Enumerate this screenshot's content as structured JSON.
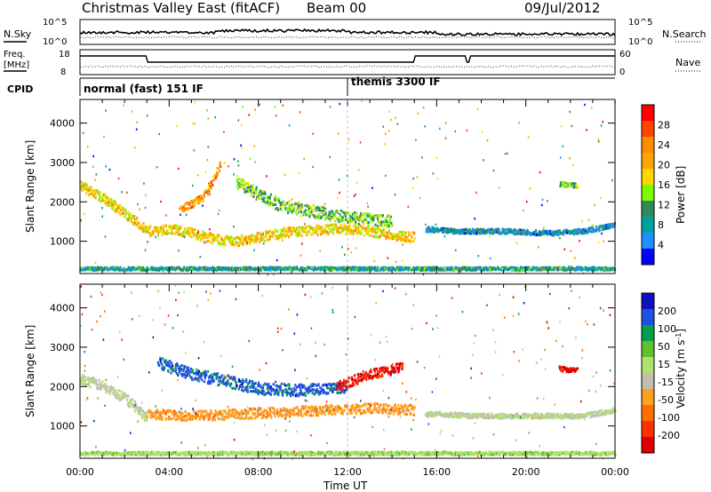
{
  "header": {
    "title": "Christmas Valley East (fitACF)",
    "beam": "Beam 00",
    "date": "09/Jul/2012"
  },
  "panels": {
    "nsky_label": "N.Sky",
    "nsearch_label": "N.Search",
    "freq_label_1": "Freq.",
    "freq_label_2": "[MHz]",
    "nave_label": "Nave",
    "cpid_label": "CPID",
    "nsky_ticks": [
      "10^5",
      "10^0"
    ],
    "nsearch_ticks": [
      "10^5",
      "10^0"
    ],
    "freq_ticks": [
      "18",
      "8"
    ],
    "nave_ticks": [
      "60",
      "0"
    ],
    "cpid_modes": [
      {
        "name": "normal (fast) 151 IF",
        "start": 0,
        "end": 12
      },
      {
        "name": "themis 3300 IF",
        "start": 12,
        "end": 24
      }
    ]
  },
  "power_colorbar": {
    "label": "Power [dB]",
    "ticks": [
      "28",
      "24",
      "20",
      "16",
      "12",
      "8",
      "4"
    ],
    "colors": [
      "#ff0000",
      "#ff4500",
      "#ff8c00",
      "#ffa500",
      "#ffd700",
      "#7cfc00",
      "#2e8b57",
      "#00a0a0",
      "#1e90ff",
      "#0000ff"
    ]
  },
  "velocity_colorbar": {
    "label": "Velocity [m s^-1]",
    "ticks": [
      "200",
      "100",
      "50",
      "15",
      "-15",
      "-50",
      "-100",
      "-200"
    ],
    "colors": [
      "#1010c0",
      "#2050e0",
      "#00a050",
      "#60c030",
      "#b0e070",
      "#c0c0b0",
      "#ffa020",
      "#ff7000",
      "#ff3000",
      "#e00000"
    ]
  },
  "axes": {
    "ylabel": "Slant Range [km]",
    "yticks": [
      "4000",
      "3000",
      "2000",
      "1000"
    ],
    "xlabel": "Time UT",
    "xticks": [
      "00:00",
      "04:00",
      "08:00",
      "12:00",
      "16:00",
      "20:00",
      "00:00"
    ]
  },
  "chart_data": [
    {
      "type": "heatmap",
      "title": "",
      "xlabel": "",
      "ylabel": "Slant Range [km]",
      "xlim": [
        0,
        24
      ],
      "ylim": [
        180,
        4600
      ],
      "value_label": "Power [dB]",
      "clim": [
        0,
        30
      ],
      "features": [
        {
          "name": "main band",
          "points": [
            [
              0.0,
              2400
            ],
            [
              1.0,
              2100
            ],
            [
              2.0,
              1700
            ],
            [
              3.0,
              1250
            ],
            [
              4.0,
              1300
            ],
            [
              5.0,
              1200
            ],
            [
              6.0,
              1050
            ],
            [
              7.0,
              1000
            ],
            [
              8.0,
              1100
            ],
            [
              9.0,
              1200
            ],
            [
              10.0,
              1250
            ],
            [
              11.0,
              1300
            ],
            [
              12.0,
              1300
            ],
            [
              13.0,
              1250
            ],
            [
              14.0,
              1150
            ],
            [
              15.0,
              1100
            ]
          ],
          "width_km": 250,
          "power_db": 18
        },
        {
          "name": "upper band",
          "points": [
            [
              4.5,
              1800
            ],
            [
              5.5,
              2100
            ],
            [
              6.0,
              2600
            ],
            [
              6.3,
              3000
            ]
          ],
          "width_km": 200,
          "power_db": 22
        },
        {
          "name": "mid band",
          "points": [
            [
              7.0,
              2500
            ],
            [
              8.0,
              2200
            ],
            [
              9.0,
              1900
            ],
            [
              10.0,
              1800
            ],
            [
              11.0,
              1700
            ],
            [
              12.0,
              1600
            ],
            [
              13.0,
              1550
            ],
            [
              14.0,
              1500
            ]
          ],
          "width_km": 300,
          "power_db": 12
        },
        {
          "name": "weak late band",
          "points": [
            [
              15.5,
              1300
            ],
            [
              17.0,
              1250
            ],
            [
              19.0,
              1250
            ],
            [
              21.0,
              1200
            ],
            [
              22.5,
              1250
            ],
            [
              24.0,
              1400
            ]
          ],
          "width_km": 120,
          "power_db": 6
        },
        {
          "name": "patch 21-22UT",
          "points": [
            [
              21.5,
              2450
            ],
            [
              22.3,
              2400
            ]
          ],
          "width_km": 120,
          "power_db": 12
        },
        {
          "name": "ground scatter edge",
          "points": [
            [
              0.0,
              300
            ],
            [
              24.0,
              300
            ]
          ],
          "width_km": 80,
          "power_db": 8
        }
      ]
    },
    {
      "type": "heatmap",
      "title": "",
      "xlabel": "Time UT",
      "ylabel": "Slant Range [km]",
      "xlim": [
        0,
        24
      ],
      "ylim": [
        180,
        4600
      ],
      "value_label": "Velocity [m s^-1]",
      "clim": [
        -200,
        200
      ],
      "features": [
        {
          "name": "ground scatter",
          "points": [
            [
              0.0,
              2200
            ],
            [
              1.0,
              2000
            ],
            [
              2.0,
              1700
            ],
            [
              3.0,
              1200
            ]
          ],
          "width_km": 250,
          "velocity": 0
        },
        {
          "name": "westward flow",
          "points": [
            [
              3.0,
              1300
            ],
            [
              5.0,
              1250
            ],
            [
              7.0,
              1300
            ],
            [
              9.0,
              1350
            ],
            [
              11.0,
              1400
            ],
            [
              13.0,
              1450
            ],
            [
              15.0,
              1400
            ]
          ],
          "width_km": 250,
          "velocity": -70
        },
        {
          "name": "blue band",
          "points": [
            [
              3.5,
              2600
            ],
            [
              5.0,
              2300
            ],
            [
              6.0,
              2200
            ],
            [
              8.0,
              1950
            ],
            [
              10.0,
              1900
            ],
            [
              12.0,
              2000
            ]
          ],
          "width_km": 300,
          "velocity": 150
        },
        {
          "name": "red streak",
          "points": [
            [
              11.5,
              2000
            ],
            [
              13.0,
              2300
            ],
            [
              14.5,
              2500
            ]
          ],
          "width_km": 250,
          "velocity": -180
        },
        {
          "name": "late gray band",
          "points": [
            [
              15.5,
              1300
            ],
            [
              18.0,
              1250
            ],
            [
              20.0,
              1250
            ],
            [
              22.5,
              1250
            ],
            [
              24.0,
              1400
            ]
          ],
          "width_km": 120,
          "velocity": 0
        },
        {
          "name": "red patch",
          "points": [
            [
              21.5,
              2450
            ],
            [
              22.3,
              2400
            ]
          ],
          "width_km": 120,
          "velocity": -200
        },
        {
          "name": "bottom strip",
          "points": [
            [
              0.0,
              300
            ],
            [
              24.0,
              300
            ]
          ],
          "width_km": 80,
          "velocity": 30
        }
      ]
    }
  ]
}
